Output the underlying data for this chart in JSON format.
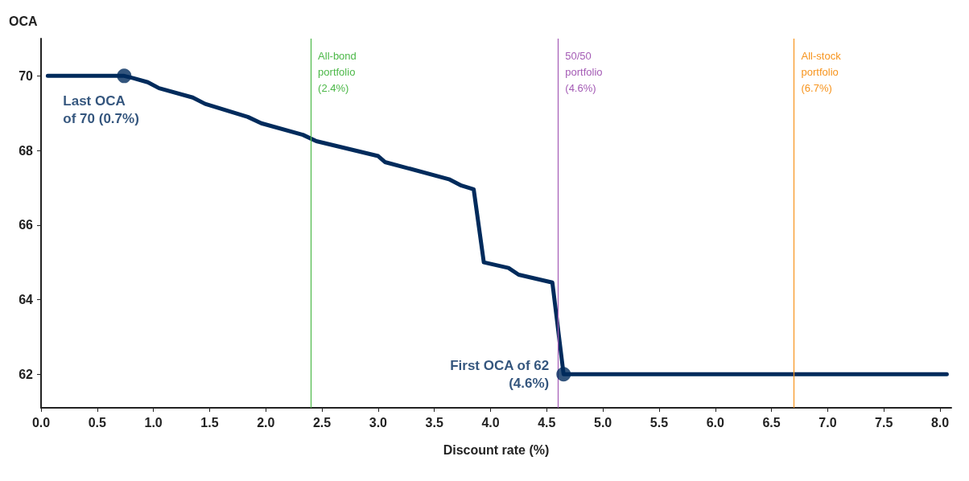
{
  "chart_data": {
    "type": "line",
    "xlabel": "Discount rate (%)",
    "ylabel": "OCA",
    "x": [
      0.06,
      0.74,
      0.82,
      0.95,
      1.05,
      1.35,
      1.46,
      1.84,
      1.96,
      2.33,
      2.45,
      3.0,
      3.06,
      3.63,
      3.74,
      3.85,
      3.94,
      4.16,
      4.25,
      4.55,
      4.65,
      8.06
    ],
    "series": [
      {
        "color": "#002b5c",
        "values": [
          70,
          70,
          69.94,
          69.83,
          69.67,
          69.42,
          69.25,
          68.9,
          68.73,
          68.42,
          68.25,
          67.85,
          67.69,
          67.23,
          67.06,
          66.96,
          65,
          64.85,
          64.67,
          64.46,
          62,
          62
        ]
      }
    ],
    "xlim": [
      0,
      8.1
    ],
    "ylim": [
      61.1,
      71
    ],
    "xticks": [
      {
        "value": 0,
        "label": "0.0"
      },
      0.5,
      {
        "value": 1,
        "label": "1.0"
      },
      1.5,
      {
        "value": 2,
        "label": "2.0"
      },
      2.5,
      {
        "value": 3,
        "label": "3.0"
      },
      3.5,
      {
        "value": 4,
        "label": "4.0"
      },
      4.5,
      {
        "value": 5,
        "label": "5.0"
      },
      5.5,
      {
        "value": 6,
        "label": "6.0"
      },
      6.5,
      {
        "value": 7,
        "label": "7.0"
      },
      7.5,
      {
        "value": 8,
        "label": "8.0"
      }
    ],
    "yticks": [
      62,
      64,
      66,
      68,
      70
    ],
    "ref_lines": [
      {
        "axis": "x",
        "value": 2.4,
        "label": "All-bond\nportfolio\n(2.4%)",
        "color": "#4cb848"
      },
      {
        "axis": "x",
        "value": 4.6,
        "label": "50/50\nportfolio\n(4.6%)",
        "color": "#a45bb5"
      },
      {
        "axis": "x",
        "value": 6.7,
        "label": "All-stock\nportfolio\n(6.7%)",
        "color": "#f7941d"
      }
    ],
    "annotations": [
      {
        "text": "Last OCA\nof 70 (0.7%)",
        "x": 0.74,
        "y": 70
      },
      {
        "text": "First OCA of 62\n(4.6%)",
        "x": 4.65,
        "y": 62
      }
    ],
    "grid": false,
    "marker": "none",
    "line_style": "solid"
  }
}
